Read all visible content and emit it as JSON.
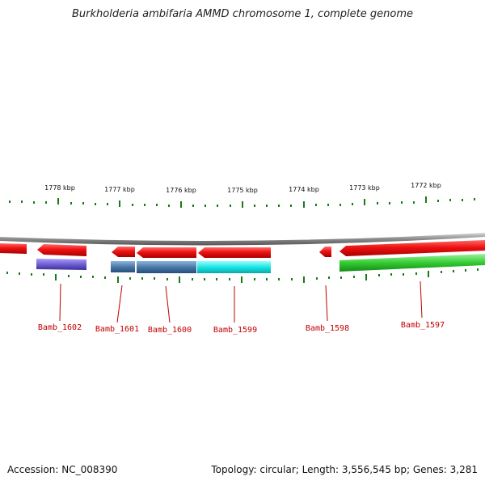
{
  "title": "Burkholderia ambifaria AMMD chromosome 1, complete genome",
  "footer": {
    "accession": "Accession: NC_008390",
    "summary": "Topology: circular; Length: 3,556,545 bp; Genes: 3,281"
  },
  "ruler": [
    "1778 kbp",
    "1777 kbp",
    "1776 kbp",
    "1775 kbp",
    "1774 kbp",
    "1773 kbp",
    "1772 kbp"
  ],
  "genes": [
    "Bamb_1602",
    "Bamb_1601",
    "Bamb_1600",
    "Bamb_1599",
    "Bamb_1598",
    "Bamb_1597"
  ],
  "colors": {
    "backbone": "#8c8c8c",
    "gene_arrow": "#ee1111",
    "tick": "#1a7a1a",
    "label": "#c00000",
    "cog_purple": "#7060d0",
    "cog_steelblue": "#4a7aa8",
    "cog_cyan": "#1ae6e6",
    "cog_green": "#33cc33"
  }
}
